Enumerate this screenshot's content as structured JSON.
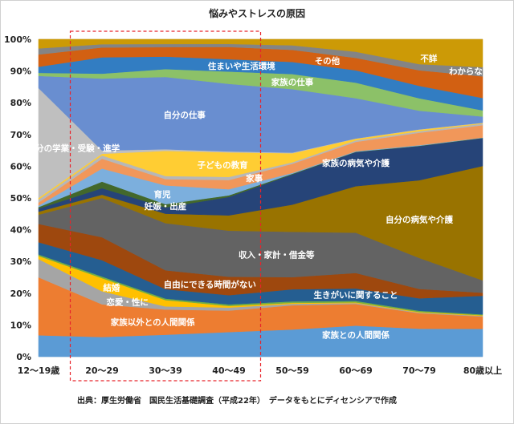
{
  "title": "悩みやストレスの原因",
  "source": "出典：厚生労働省　国民生活基礎調査（平成22年）　データをもとにディセンシアで作成",
  "chart_data": {
    "type": "area",
    "stacked": true,
    "percent": true,
    "title": "悩みやストレスの原因",
    "categories": [
      "12〜19歳",
      "20〜29",
      "30〜39",
      "40〜49",
      "50〜59",
      "60〜69",
      "70〜79",
      "80歳以上"
    ],
    "ylim": [
      0,
      100
    ],
    "yticks": [
      "0%",
      "10%",
      "20%",
      "30%",
      "40%",
      "50%",
      "60%",
      "70%",
      "80%",
      "90%",
      "100%"
    ],
    "grid": true,
    "legend": "none",
    "highlight_range": [
      "20〜29",
      "40〜49"
    ],
    "series": [
      {
        "name": "家族との人間関係",
        "color": "#5b9bd5",
        "values": [
          7,
          6,
          7,
          8,
          9,
          10,
          9,
          9
        ]
      },
      {
        "name": "家族以外との人間関係",
        "color": "#ed7d31",
        "values": [
          19,
          10,
          8,
          7,
          8,
          7,
          5,
          4
        ]
      },
      {
        "name": "恋愛・性に",
        "color": "#a5a5a5",
        "values": [
          6,
          4,
          1,
          1,
          0.5,
          0.3,
          0.2,
          0.2
        ]
      },
      {
        "name": "結婚",
        "color": "#ffc000",
        "values": [
          1,
          4,
          2,
          0.5,
          0.3,
          0.2,
          0.2,
          0.2
        ]
      },
      {
        "name": "",
        "color": "#70ad47",
        "values": [
          0.5,
          0.5,
          0.5,
          0.5,
          0.5,
          0.5,
          0.4,
          0.3
        ]
      },
      {
        "name": "生きがいに関すること",
        "color": "#255e91",
        "values": [
          4,
          5,
          3,
          3,
          4,
          4,
          4,
          6
        ]
      },
      {
        "name": "自由にできる時間がない",
        "color": "#9e480e",
        "values": [
          6,
          7,
          6,
          6,
          4,
          5,
          3,
          1
        ]
      },
      {
        "name": "収入・家計・借金等",
        "color": "#636363",
        "values": [
          3,
          12,
          15,
          15,
          15,
          13,
          10,
          4
        ]
      },
      {
        "name": "自分の病気や介護",
        "color": "#997300",
        "values": [
          1,
          1,
          3,
          5,
          9,
          15,
          25,
          37
        ]
      },
      {
        "name": "家族の病気や介護",
        "color": "#264478",
        "values": [
          1,
          2,
          2,
          6,
          10,
          11,
          11,
          9
        ]
      },
      {
        "name": "妊娠・出産",
        "color": "#43682b",
        "values": [
          0.5,
          2,
          1,
          0.5,
          0.2,
          0.1,
          0.1,
          0.1
        ]
      },
      {
        "name": "育児",
        "color": "#7cafdd",
        "values": [
          0.5,
          4,
          6,
          2,
          0.3,
          0.2,
          0.2,
          0.1
        ]
      },
      {
        "name": "家事",
        "color": "#f1975a",
        "values": [
          1,
          3,
          2,
          3,
          3,
          3,
          4,
          4
        ]
      },
      {
        "name": "",
        "color": "#b7b7b7",
        "values": [
          1,
          1,
          1,
          1,
          0.5,
          0.5,
          0.5,
          0.5
        ]
      },
      {
        "name": "子どもの教育",
        "color": "#ffcd33",
        "values": [
          0.5,
          0.5,
          8,
          8,
          3,
          0.5,
          0.5,
          0.2
        ]
      },
      {
        "name": "自分の学業・受験・進学",
        "color": "#bfbfbf",
        "values": [
          36,
          1,
          0.5,
          0.3,
          0.2,
          0.1,
          0.1,
          0.1
        ]
      },
      {
        "name": "自分の仕事",
        "color": "#698ed0",
        "values": [
          4,
          22,
          23,
          22,
          21,
          13,
          6,
          2
        ]
      },
      {
        "name": "家族の仕事",
        "color": "#8cc168",
        "values": [
          1,
          1.5,
          2.5,
          4,
          5,
          5,
          4,
          2
        ]
      },
      {
        "name": "住まいや生活環境",
        "color": "#327dc2",
        "values": [
          2,
          5,
          4,
          4,
          4,
          4,
          4,
          4
        ]
      },
      {
        "name": "その他",
        "color": "#d26012",
        "values": [
          4,
          3,
          3,
          4,
          4,
          4,
          5,
          7
        ]
      },
      {
        "name": "わからない",
        "color": "#848484",
        "values": [
          2,
          1,
          1,
          1,
          1.5,
          2,
          2,
          3
        ]
      },
      {
        "name": "不詳",
        "color": "#cc9a06",
        "values": [
          3,
          1.5,
          1.5,
          1.5,
          2,
          4,
          8,
          9
        ]
      }
    ],
    "annotations": [
      {
        "text": "家族との人間関係",
        "series": "家族との人間関係",
        "cat": 5,
        "dy": 2
      },
      {
        "text": "家族以外との人間関係",
        "series": "家族以外との人間関係",
        "cat": 1.8,
        "dy": 0
      },
      {
        "text": "恋愛・性に",
        "series": "恋愛・性に",
        "cat": 1.4,
        "dy": 0
      },
      {
        "text": "結婚",
        "series": "結婚",
        "cat": 1.15,
        "dy": 0
      },
      {
        "text": "生きがいに関すること",
        "series": "生きがいに関すること",
        "cat": 5,
        "dy": 0
      },
      {
        "text": "自由にできる時間がない",
        "series": "自由にできる時間がない",
        "cat": 2.7,
        "dy": 0
      },
      {
        "text": "収入・家計・借金等",
        "series": "収入・家計・借金等",
        "cat": 3.75,
        "dy": 0
      },
      {
        "text": "自分の病気や介護",
        "series": "自分の病気や介護",
        "cat": 6.0,
        "dy": 0
      },
      {
        "text": "家族の病気や介護",
        "series": "家族の病気や介護",
        "cat": 5.0,
        "dy": 2
      },
      {
        "text": "妊娠・出産",
        "series": "妊娠・出産",
        "cat": 2.0,
        "dy": 0
      },
      {
        "text": "育児",
        "series": "育児",
        "cat": 1.95,
        "dy": 0
      },
      {
        "text": "家事",
        "series": "家事",
        "cat": 3.4,
        "dy": 0
      },
      {
        "text": "子どもの教育",
        "series": "子どもの教育",
        "cat": 2.9,
        "dy": 0
      },
      {
        "text": "自分の学業・受験・進学",
        "series": "自分の学業・受験・進学",
        "cat": 0.55,
        "dy": 0
      },
      {
        "text": "自分の仕事",
        "series": "自分の仕事",
        "cat": 2.3,
        "dy": 0
      },
      {
        "text": "家族の仕事",
        "series": "家族の仕事",
        "cat": 4.0,
        "dy": 0
      },
      {
        "text": "住まいや生活環境",
        "series": "住まいや生活環境",
        "cat": 3.2,
        "dy": 0
      },
      {
        "text": "その他",
        "series": "その他",
        "cat": 4.55,
        "dy": 0
      },
      {
        "text": "わからない",
        "series": "わからない",
        "cat": 6.8,
        "dy": 0
      },
      {
        "text": "不詳",
        "series": "不詳",
        "cat": 6.15,
        "dy": -2
      }
    ]
  }
}
